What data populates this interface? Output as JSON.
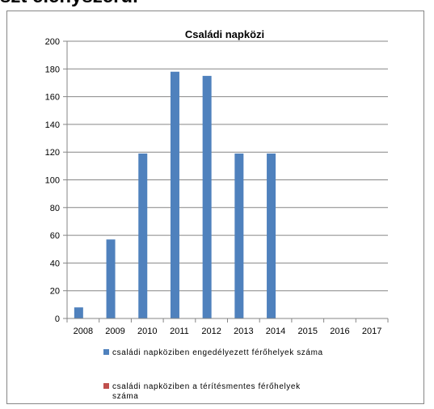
{
  "page": {
    "heading": "szt elenyszerul"
  },
  "chart_data": {
    "type": "bar",
    "title": "Családi napközi",
    "categories": [
      "2008",
      "2009",
      "2010",
      "2011",
      "2012",
      "2013",
      "2014",
      "2015",
      "2016",
      "2017"
    ],
    "series": [
      {
        "name": "családi napköziben engedélyezett férőhelyek száma",
        "color": "#4f81bd",
        "values": [
          8,
          57,
          119,
          178,
          175,
          119,
          119,
          0,
          0,
          0
        ]
      },
      {
        "name": "családi napköziben a térítésmentes férőhelyek száma",
        "color": "#c0504d",
        "values": [
          0,
          0,
          0,
          0,
          0,
          0,
          0,
          0,
          0,
          0
        ]
      }
    ],
    "ylim": [
      0,
      200
    ],
    "yticks": [
      "0",
      "20",
      "40",
      "60",
      "80",
      "100",
      "120",
      "140",
      "160",
      "180",
      "200"
    ],
    "xlabel": "",
    "ylabel": "",
    "grid": true,
    "legend_position": "bottom"
  }
}
